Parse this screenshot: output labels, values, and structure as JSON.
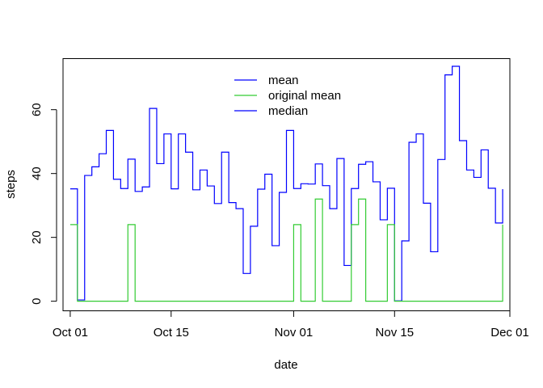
{
  "chart_data": {
    "type": "line",
    "step": true,
    "title": "",
    "xlabel": "date",
    "ylabel": "steps",
    "x_start": "2012-10-01",
    "xticks": [
      {
        "date": "2012-10-01",
        "label": "Oct 01"
      },
      {
        "date": "2012-10-15",
        "label": "Oct 15"
      },
      {
        "date": "2012-11-01",
        "label": "Nov 01"
      },
      {
        "date": "2012-11-15",
        "label": "Nov 15"
      },
      {
        "date": "2012-12-01",
        "label": "Dec 01"
      }
    ],
    "yticks": [
      0,
      20,
      40,
      60
    ],
    "xlim": [
      "2012-09-30",
      "2012-12-01"
    ],
    "ylim": [
      -3,
      76
    ],
    "grid": false,
    "legend": "top-center",
    "series": [
      {
        "name": "mean",
        "color": "#0000ff",
        "values": [
          35.2,
          0.4,
          39.4,
          42.1,
          46.2,
          53.5,
          38.2,
          35.3,
          44.5,
          34.4,
          35.8,
          60.4,
          43.1,
          52.4,
          35.2,
          52.4,
          46.7,
          34.9,
          41.1,
          36.1,
          30.6,
          46.7,
          30.9,
          29.0,
          8.7,
          23.5,
          35.1,
          39.8,
          17.4,
          34.1,
          53.5,
          35.3,
          36.8,
          36.7,
          43.0,
          36.2,
          29.0,
          44.7,
          11.2,
          35.3,
          42.9,
          43.7,
          37.4,
          25.5,
          35.4,
          0.1,
          18.9,
          49.8,
          52.4,
          30.7,
          15.5,
          44.4,
          70.9,
          73.6,
          50.3,
          41.1,
          38.8,
          47.4,
          35.4,
          24.5,
          35.1
        ]
      },
      {
        "name": "original mean",
        "color": "#33cc33",
        "values": [
          24,
          0,
          0,
          0,
          0,
          0,
          0,
          0,
          24,
          0,
          0,
          0,
          0,
          0,
          0,
          0,
          0,
          0,
          0,
          0,
          0,
          0,
          0,
          0,
          0,
          0,
          0,
          0,
          0,
          0,
          0,
          24,
          0,
          0,
          32,
          0,
          0,
          0,
          0,
          24,
          32,
          0,
          0,
          0,
          24,
          0,
          0,
          0,
          0,
          0,
          0,
          0,
          0,
          0,
          0,
          0,
          0,
          0,
          0,
          0,
          24
        ]
      },
      {
        "name": "median",
        "color": "#0000ff",
        "values": []
      }
    ]
  }
}
